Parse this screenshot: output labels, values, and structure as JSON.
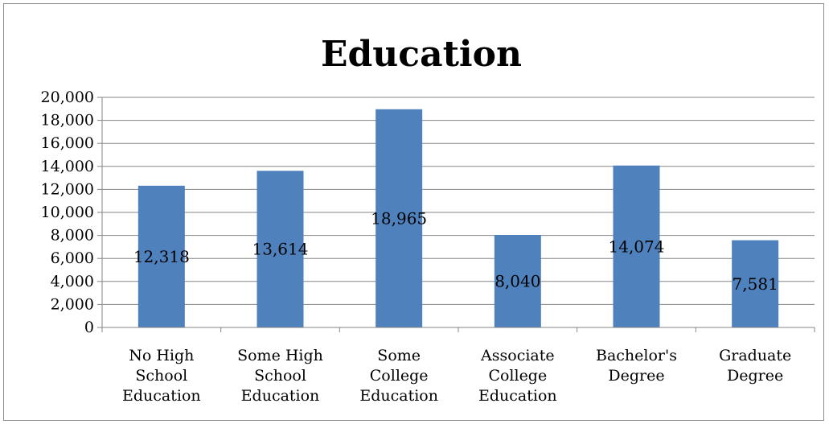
{
  "chart_data": {
    "type": "bar",
    "title": "Education",
    "xlabel": "",
    "ylabel": "",
    "categories": [
      [
        "No High",
        "School",
        "Education"
      ],
      [
        "Some High",
        "School",
        "Education"
      ],
      [
        "Some",
        "College",
        "Education"
      ],
      [
        "Associate",
        "College",
        "Education"
      ],
      [
        "Bachelor's",
        "Degree"
      ],
      [
        "Graduate",
        "Degree"
      ]
    ],
    "values": [
      12318,
      13614,
      18965,
      8040,
      14074,
      7581
    ],
    "data_labels": [
      "12,318",
      "13,614",
      "18,965",
      "8,040",
      "14,074",
      "7,581"
    ],
    "ylim": [
      0,
      20000
    ],
    "yticks": [
      0,
      2000,
      4000,
      6000,
      8000,
      10000,
      12000,
      14000,
      16000,
      18000,
      20000
    ],
    "ytick_labels": [
      "0",
      "2,000",
      "4,000",
      "6,000",
      "8,000",
      "10,000",
      "12,000",
      "14,000",
      "16,000",
      "18,000",
      "20,000"
    ],
    "grid": true,
    "legend": "none",
    "bar_color": "#4f81bd",
    "grid_color": "#868686"
  }
}
